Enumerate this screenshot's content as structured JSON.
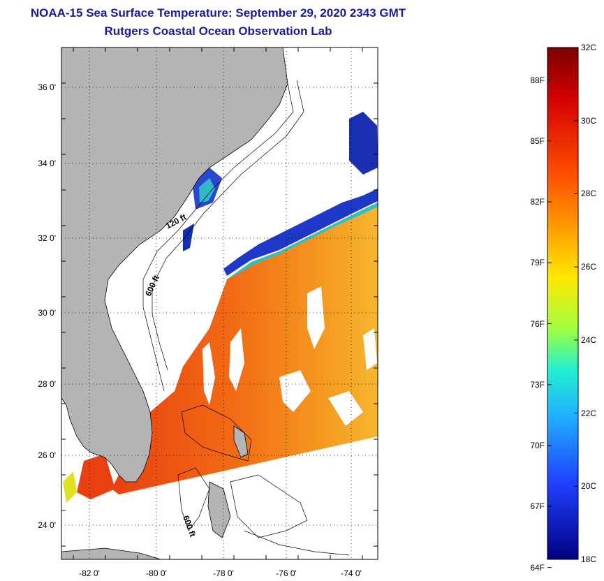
{
  "title": "NOAA-15 Sea Surface Temperature:  September 29, 2020 2343 GMT",
  "subtitle": "Rutgers Coastal Ocean Observation Lab",
  "map": {
    "lat_labels": [
      "36 0'",
      "34 0'",
      "32 0'",
      "30 0'",
      "28 0'",
      "26 0'",
      "24 0'"
    ],
    "lon_labels": [
      "-82 0'",
      "-80 0'",
      "-78 0'",
      "-76 0'",
      "-74 0'"
    ],
    "contour_labels": [
      "120 ft",
      "600 ft",
      "600 ft"
    ],
    "colors": {
      "land": "#b4b4b4",
      "cloud": "#ffffff",
      "warm": "#f06010",
      "cool": "#2040d0"
    }
  },
  "colorbar": {
    "celsius": [
      "32C",
      "30C",
      "28C",
      "26C",
      "24C",
      "22C",
      "20C",
      "18C"
    ],
    "fahrenheit": [
      "88F",
      "85F",
      "82F",
      "79F",
      "76F",
      "73F",
      "70F",
      "67F",
      "64F"
    ],
    "range_c": [
      18,
      32
    ]
  }
}
